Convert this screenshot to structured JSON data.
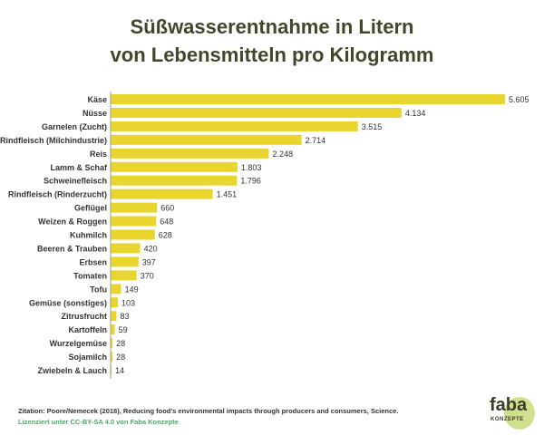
{
  "chart_data": {
    "type": "bar",
    "orientation": "horizontal",
    "title_lines": [
      "Süßwasserentnahme in Litern",
      "von Lebensmitteln pro Kilogramm"
    ],
    "categories": [
      "Käse",
      "Nüsse",
      "Garnelen (Zucht)",
      "Rindfleisch (Milchindustrie)",
      "Reis",
      "Lamm & Schaf",
      "Schweinefleisch",
      "Rindfleisch (Rinderzucht)",
      "Geflügel",
      "Weizen & Roggen",
      "Kuhmilch",
      "Beeren & Trauben",
      "Erbsen",
      "Tomaten",
      "Tofu",
      "Gemüse (sonstiges)",
      "Zitrusfrucht",
      "Kartoffeln",
      "Wurzelgemüse",
      "Sojamilch",
      "Zwiebeln & Lauch"
    ],
    "values": [
      5605,
      4134,
      3515,
      2714,
      2248,
      1803,
      1796,
      1451,
      660,
      648,
      628,
      420,
      397,
      370,
      149,
      103,
      83,
      59,
      28,
      28,
      14
    ],
    "value_labels": [
      "5.605",
      "4.134",
      "3.515",
      "2.714",
      "2.248",
      "1.803",
      "1.796",
      "1.451",
      "660",
      "648",
      "628",
      "420",
      "397",
      "370",
      "149",
      "103",
      "83",
      "59",
      "28",
      "28",
      "14"
    ],
    "xlim": [
      0,
      5605
    ],
    "bar_color": "#e8d62e"
  },
  "citation": "Zitation: Poore/Nemecek (2018), Reducing food’s environmental impacts through producers and consumers, Science.",
  "license": "Lizenziert unter CC-BY-SA 4.0 von Faba Konzepte",
  "logo": {
    "name": "faba",
    "sub": "KONZEPTE"
  }
}
